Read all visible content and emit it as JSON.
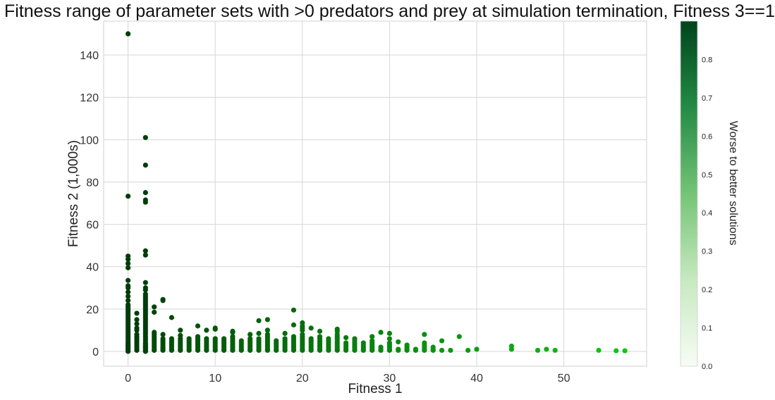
{
  "chart_data": {
    "type": "scatter",
    "title": "Fitness range of parameter sets with >0 predators and prey at simulation termination, Fitness 3==1",
    "xlabel": "Fitness 1",
    "ylabel": "Fitness 2 (1,000s)",
    "xlim": [
      -2.8,
      59.5
    ],
    "ylim": [
      -7,
      156
    ],
    "xticks": [
      0,
      10,
      20,
      30,
      40,
      50
    ],
    "yticks": [
      0,
      20,
      40,
      60,
      80,
      100,
      120,
      140
    ],
    "grid": true,
    "colorbar": {
      "label": "Worse to better solutions",
      "range": [
        0.0,
        0.9
      ],
      "ticks": [
        0.0,
        0.1,
        0.2,
        0.3,
        0.4,
        0.5,
        0.6,
        0.7,
        0.8
      ],
      "tick_labels": [
        "0.0",
        "0.1",
        "0.2",
        "0.3",
        "0.4",
        "0.5",
        "0.6",
        "0.7",
        "0.8"
      ],
      "colors": [
        "#f7fcf5",
        "#c7e9c0",
        "#74c476",
        "#238b45",
        "#00441b"
      ]
    },
    "points_by_x": [
      {
        "x": 0,
        "y": [
          0,
          0.5,
          1,
          1.5,
          2,
          2.5,
          3,
          3.5,
          4,
          5,
          6,
          7,
          8,
          9,
          10,
          11,
          12,
          13,
          14,
          15,
          16,
          17,
          18,
          19,
          20,
          21,
          22,
          24,
          26,
          28,
          30,
          31,
          33.5,
          39.5,
          41.5,
          43.5,
          45,
          73.3,
          150
        ]
      },
      {
        "x": 1,
        "y": [
          0.5,
          1,
          2,
          3,
          4,
          5,
          6,
          7,
          8,
          10,
          11,
          13,
          15,
          18
        ]
      },
      {
        "x": 2,
        "y": [
          0,
          0.5,
          1,
          1.5,
          2,
          2.5,
          3,
          3.5,
          4,
          5,
          6,
          7,
          8,
          9,
          10,
          11,
          12,
          13,
          14,
          15,
          16,
          17,
          18,
          19,
          20,
          21,
          22,
          23,
          24,
          25,
          26,
          27,
          29,
          30,
          32.5,
          45.5,
          47.5,
          70.5,
          71.5,
          75,
          88,
          101
        ]
      },
      {
        "x": 3,
        "y": [
          0.5,
          1,
          2,
          3,
          4,
          5,
          6,
          7,
          8,
          9,
          18.5,
          21
        ]
      },
      {
        "x": 4,
        "y": [
          0.5,
          1,
          1.5,
          2,
          3,
          4,
          5,
          6,
          8,
          24,
          24.5
        ]
      },
      {
        "x": 5,
        "y": [
          0.5,
          1,
          2,
          3,
          4,
          5,
          6,
          16
        ]
      },
      {
        "x": 6,
        "y": [
          0.5,
          1,
          2,
          3,
          4,
          5,
          6,
          7.5,
          10
        ]
      },
      {
        "x": 7,
        "y": [
          0.5,
          1,
          2,
          3,
          4,
          5,
          6
        ]
      },
      {
        "x": 8,
        "y": [
          0.5,
          1,
          2,
          3,
          4,
          5,
          6,
          7,
          12
        ]
      },
      {
        "x": 9,
        "y": [
          0.5,
          1,
          2,
          3,
          4,
          5,
          6,
          10
        ]
      },
      {
        "x": 10,
        "y": [
          0.5,
          1,
          2,
          3,
          4,
          5,
          6,
          10.5,
          11
        ]
      },
      {
        "x": 11,
        "y": [
          0.5,
          1,
          2,
          3,
          4,
          5,
          6
        ]
      },
      {
        "x": 12,
        "y": [
          0.5,
          1,
          2,
          3,
          4,
          5,
          6,
          7,
          9,
          9.5
        ]
      },
      {
        "x": 13,
        "y": [
          0.5,
          1,
          2,
          3,
          4,
          5
        ]
      },
      {
        "x": 14,
        "y": [
          0.5,
          1,
          2,
          3,
          4,
          5,
          6,
          8
        ]
      },
      {
        "x": 15,
        "y": [
          0.5,
          1,
          2,
          3,
          4,
          5,
          6,
          8.5,
          14.5
        ]
      },
      {
        "x": 16,
        "y": [
          0.5,
          1,
          2,
          3,
          4,
          5,
          6,
          7,
          8,
          10,
          15
        ]
      },
      {
        "x": 17,
        "y": [
          0.5,
          1,
          2,
          3,
          4,
          5
        ]
      },
      {
        "x": 18,
        "y": [
          0.5,
          1,
          2,
          3,
          4,
          5,
          6,
          8.5
        ]
      },
      {
        "x": 19,
        "y": [
          0.5,
          1,
          2,
          3,
          4,
          5,
          6,
          7,
          12.5,
          19.5
        ]
      },
      {
        "x": 20,
        "y": [
          0.5,
          1,
          2,
          3,
          4,
          5,
          6,
          7,
          8,
          10,
          11,
          12,
          13.5
        ]
      },
      {
        "x": 21,
        "y": [
          0.5,
          1,
          2,
          3,
          4,
          5,
          6,
          11
        ]
      },
      {
        "x": 22,
        "y": [
          0.5,
          1,
          2,
          3,
          4,
          5,
          6,
          7,
          9.5
        ]
      },
      {
        "x": 23,
        "y": [
          0.5,
          1,
          2,
          3,
          4,
          5,
          6
        ]
      },
      {
        "x": 24,
        "y": [
          0.5,
          1,
          2,
          3,
          4,
          5,
          6,
          7,
          8,
          9.5,
          10.5
        ]
      },
      {
        "x": 25,
        "y": [
          0.5,
          1,
          2,
          3,
          4,
          6.5
        ]
      },
      {
        "x": 26,
        "y": [
          0.5,
          1,
          2,
          3,
          4,
          5,
          6
        ]
      },
      {
        "x": 27,
        "y": [
          0.5,
          1,
          2,
          3,
          4
        ]
      },
      {
        "x": 28,
        "y": [
          0.5,
          1,
          2,
          3,
          4,
          5,
          7
        ]
      },
      {
        "x": 29,
        "y": [
          0.5,
          1,
          2,
          9
        ]
      },
      {
        "x": 30,
        "y": [
          0.5,
          1,
          2,
          3,
          4,
          6,
          8.5
        ]
      },
      {
        "x": 31,
        "y": [
          0.5,
          1,
          4.5
        ]
      },
      {
        "x": 32,
        "y": [
          0.5,
          1,
          2,
          3
        ]
      },
      {
        "x": 33,
        "y": [
          0.5,
          1
        ]
      },
      {
        "x": 34,
        "y": [
          0.5,
          1,
          2,
          3,
          4,
          8
        ]
      },
      {
        "x": 35,
        "y": [
          0.5,
          1,
          2
        ]
      },
      {
        "x": 36,
        "y": [
          0.5,
          5
        ]
      },
      {
        "x": 37,
        "y": [
          0.5
        ]
      },
      {
        "x": 38,
        "y": [
          7
        ]
      },
      {
        "x": 39,
        "y": [
          0.5
        ]
      },
      {
        "x": 40,
        "y": [
          1
        ]
      },
      {
        "x": 44,
        "y": [
          1,
          2.5
        ]
      },
      {
        "x": 47,
        "y": [
          0.5
        ]
      },
      {
        "x": 48,
        "y": [
          1
        ]
      },
      {
        "x": 49,
        "y": [
          0.5
        ]
      },
      {
        "x": 54,
        "y": [
          0.5
        ]
      },
      {
        "x": 56,
        "y": [
          0.3
        ]
      },
      {
        "x": 57,
        "y": [
          0.3
        ]
      }
    ]
  }
}
